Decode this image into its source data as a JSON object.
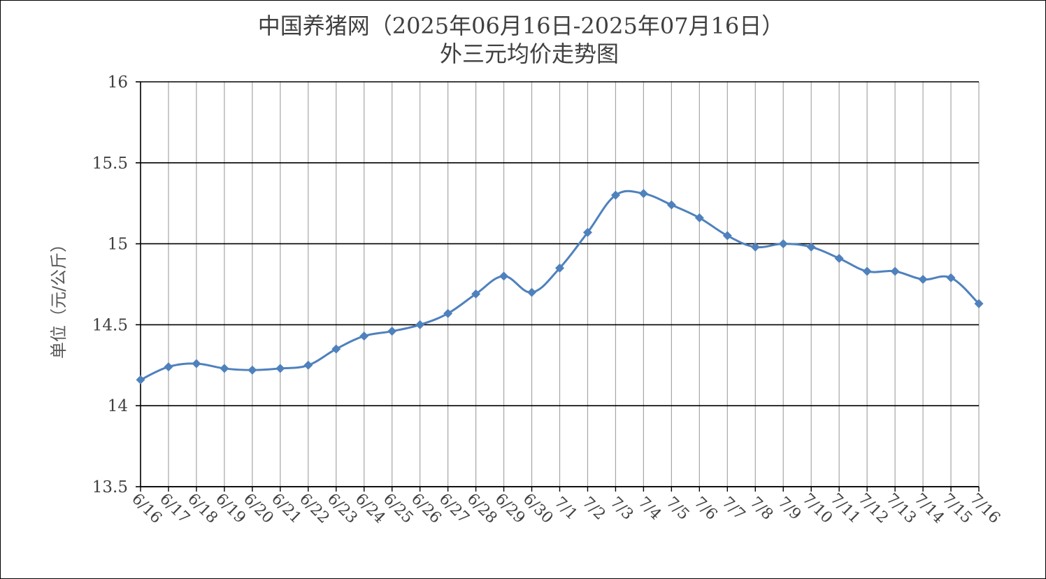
{
  "chart_data": {
    "type": "line",
    "title_line1": "中国养猪网（2025年06月16日-2025年07月16日）",
    "title_line2": "外三元均价走势图",
    "ylabel": "单位（元/公斤）",
    "xlabel": "",
    "ylim": [
      13.5,
      16
    ],
    "yticks": [
      13.5,
      14,
      14.5,
      15,
      15.5,
      16
    ],
    "ytick_labels": [
      "13.5",
      "14",
      "14.5",
      "15",
      "15.5",
      "16"
    ],
    "grid": true,
    "legend": "none",
    "categories": [
      "6/16",
      "6/17",
      "6/18",
      "6/19",
      "6/20",
      "6/21",
      "6/22",
      "6/23",
      "6/24",
      "6/25",
      "6/26",
      "6/27",
      "6/28",
      "6/29",
      "6/30",
      "7/1",
      "7/2",
      "7/3",
      "7/4",
      "7/5",
      "7/6",
      "7/7",
      "7/8",
      "7/9",
      "7/10",
      "7/11",
      "7/12",
      "7/13",
      "7/14",
      "7/15",
      "7/16"
    ],
    "series": [
      {
        "values": [
          14.16,
          14.24,
          14.26,
          14.23,
          14.22,
          14.23,
          14.25,
          14.35,
          14.43,
          14.46,
          14.5,
          14.57,
          14.69,
          14.8,
          14.7,
          14.85,
          15.07,
          15.3,
          15.31,
          15.24,
          15.16,
          15.05,
          14.98,
          15.0,
          14.98,
          14.91,
          14.83,
          14.83,
          14.78,
          14.79,
          14.63
        ],
        "color": "#4f81bd"
      }
    ]
  }
}
